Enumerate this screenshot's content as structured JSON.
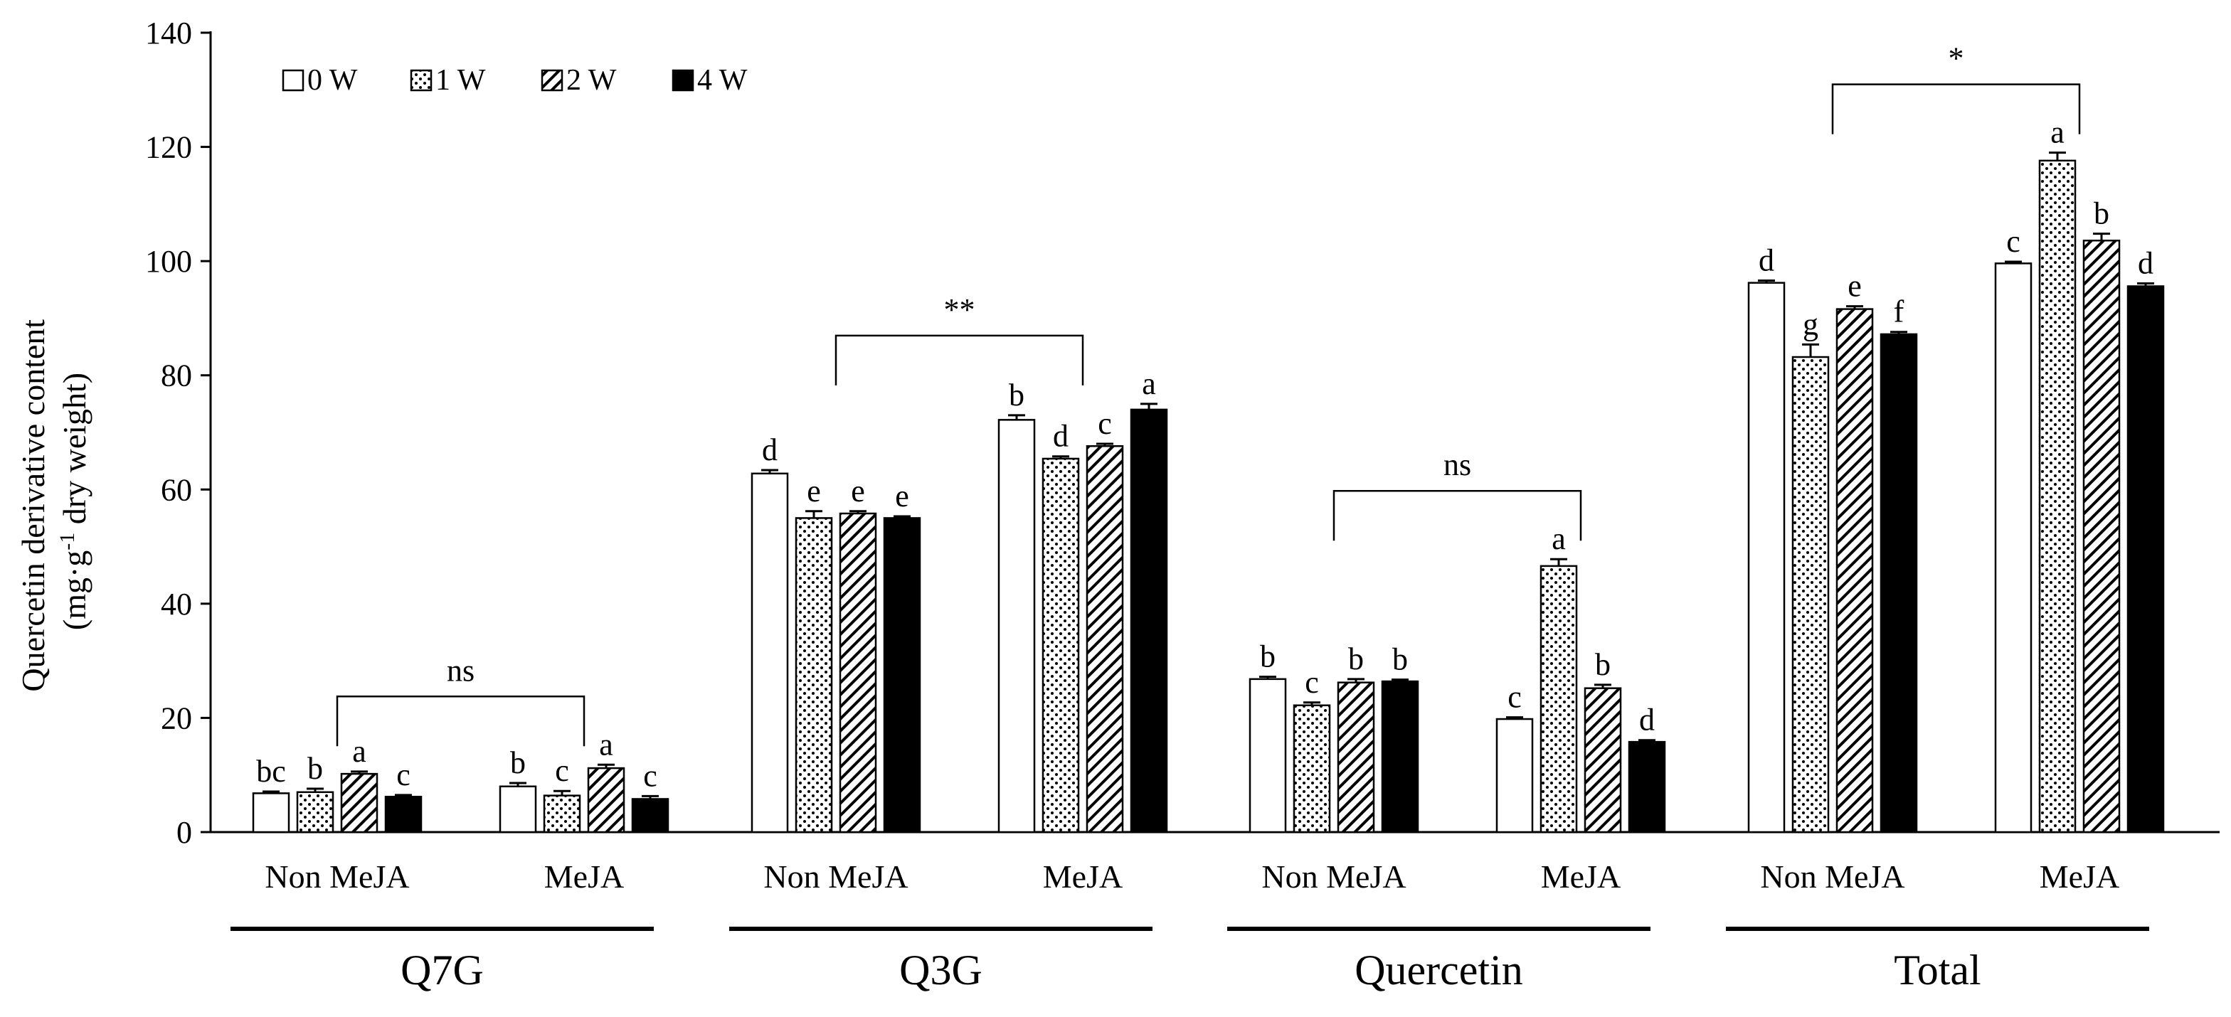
{
  "chart_data": {
    "type": "bar",
    "ylabel_line1": "Quercetin derivative content",
    "ylabel_line2_prefix": "(mg·g",
    "ylabel_superscript": "-1",
    "ylabel_line2_suffix": " dry weight)",
    "ylim": [
      0,
      140
    ],
    "yticks": [
      "0",
      "20",
      "40",
      "60",
      "80",
      "100",
      "120",
      "140"
    ],
    "ytick_values": [
      0,
      20,
      40,
      60,
      80,
      100,
      120,
      140
    ],
    "legend_position": "top-left",
    "series": [
      {
        "name": "0 W",
        "pattern": "white"
      },
      {
        "name": "1 W",
        "pattern": "dots"
      },
      {
        "name": "2 W",
        "pattern": "hatch"
      },
      {
        "name": "4 W",
        "pattern": "black"
      }
    ],
    "groups": [
      {
        "name": "Q7G",
        "significance": "ns",
        "subgroups": [
          {
            "name": "Non MeJA",
            "values": [
              6.8,
              7.0,
              10.2,
              6.2
            ],
            "errors": [
              0.3,
              0.6,
              0.4,
              0.3
            ],
            "letters": [
              "bc",
              "b",
              "a",
              "c"
            ]
          },
          {
            "name": "MeJA",
            "values": [
              8.0,
              6.4,
              11.2,
              5.8
            ],
            "errors": [
              0.6,
              0.8,
              0.6,
              0.5
            ],
            "letters": [
              "b",
              "c",
              "a",
              "c"
            ]
          }
        ]
      },
      {
        "name": "Q3G",
        "significance": "**",
        "subgroups": [
          {
            "name": "Non MeJA",
            "values": [
              62.8,
              55.0,
              55.8,
              55.0
            ],
            "errors": [
              0.6,
              1.2,
              0.4,
              0.3
            ],
            "letters": [
              "d",
              "e",
              "e",
              "e"
            ]
          },
          {
            "name": "MeJA",
            "values": [
              72.2,
              65.4,
              67.6,
              74.0
            ],
            "errors": [
              0.8,
              0.4,
              0.4,
              1.0
            ],
            "letters": [
              "b",
              "d",
              "c",
              "a"
            ]
          }
        ]
      },
      {
        "name": "Quercetin",
        "significance": "ns",
        "subgroups": [
          {
            "name": "Non MeJA",
            "values": [
              26.8,
              22.2,
              26.2,
              26.4
            ],
            "errors": [
              0.4,
              0.5,
              0.6,
              0.3
            ],
            "letters": [
              "b",
              "c",
              "b",
              "b"
            ]
          },
          {
            "name": "MeJA",
            "values": [
              19.8,
              46.6,
              25.2,
              15.8
            ],
            "errors": [
              0.3,
              1.2,
              0.6,
              0.3
            ],
            "letters": [
              "c",
              "a",
              "b",
              "d"
            ]
          }
        ]
      },
      {
        "name": "Total",
        "significance": "*",
        "subgroups": [
          {
            "name": "Non MeJA",
            "values": [
              96.2,
              83.2,
              91.6,
              87.2
            ],
            "errors": [
              0.4,
              2.2,
              0.5,
              0.4
            ],
            "letters": [
              "d",
              "g",
              "e",
              "f"
            ]
          },
          {
            "name": "MeJA",
            "values": [
              99.6,
              117.6,
              103.6,
              95.6
            ],
            "errors": [
              0.3,
              1.4,
              1.2,
              0.5
            ],
            "letters": [
              "c",
              "a",
              "b",
              "d"
            ]
          }
        ]
      }
    ]
  }
}
